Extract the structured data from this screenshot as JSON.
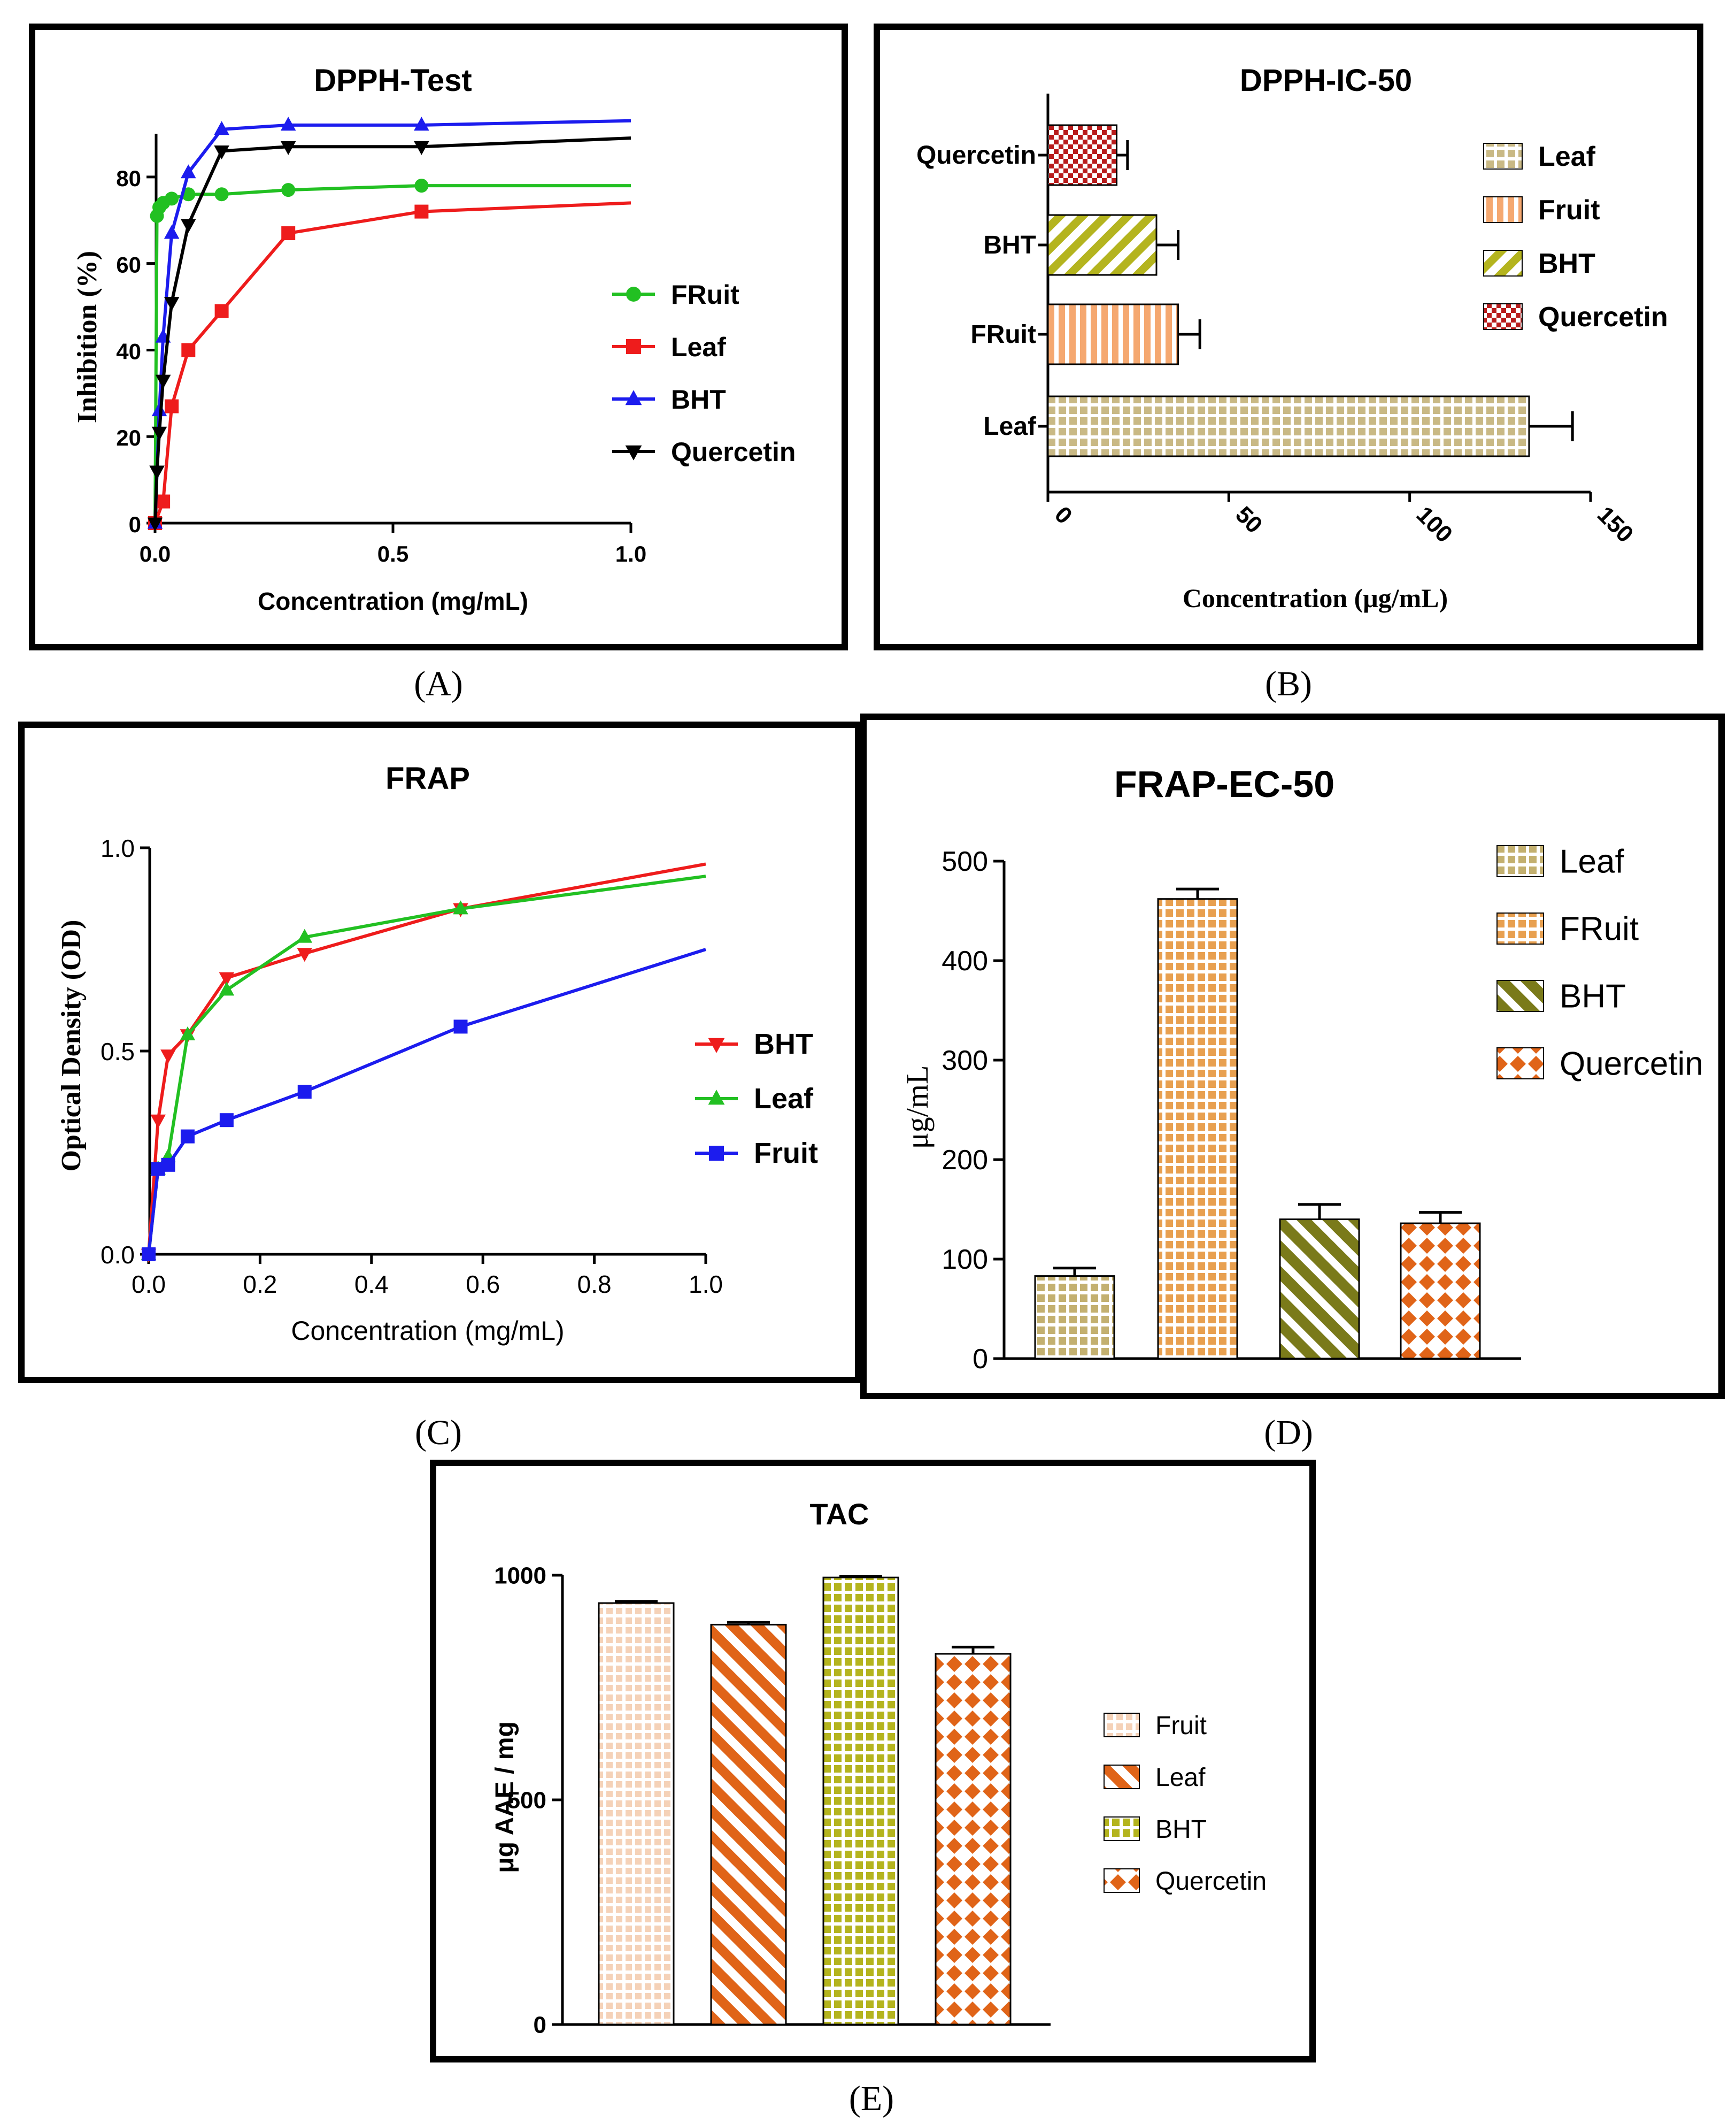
{
  "panels": {
    "A": "(A)",
    "B": "(B)",
    "C": "(C)",
    "D": "(D)",
    "E": "(E)"
  },
  "colors": {
    "green": "#22c022",
    "red": "#ee1c1c",
    "blue": "#1c1cee",
    "black": "#000000",
    "leaf_tan": "#c9b985",
    "fruit_peach": "#f5a870",
    "bht_olive": "#b4b41e",
    "quercetin_red": "#b81c1c",
    "frap_leaf": "#c3b070",
    "frap_fruit": "#e8a050",
    "frap_bht": "#7a7a1a",
    "frap_quercetin": "#e06418",
    "tac_fruit": "#f5d2b8",
    "tac_leaf": "#e06418",
    "tac_bht": "#b4b41e",
    "tac_quercetin": "#e06418"
  },
  "chart_data": [
    {
      "id": "A",
      "type": "line",
      "title": "DPPH-Test",
      "xlabel": "Concentration (mg/mL)",
      "ylabel": "Inhibition (%)",
      "xlim": [
        0,
        1.0
      ],
      "ylim": [
        0,
        90
      ],
      "xticks": [
        "0.0",
        "0.5",
        "1.0"
      ],
      "yticks": [
        "0",
        "20",
        "40",
        "60",
        "80"
      ],
      "legend": "right",
      "series": [
        {
          "name": "FRuit",
          "marker": "circle",
          "color_key": "green",
          "x": [
            0,
            0.004,
            0.009,
            0.017,
            0.035,
            0.07,
            0.14,
            0.28,
            0.56
          ],
          "y": [
            0,
            71,
            73,
            74,
            75,
            76,
            76,
            77,
            78
          ],
          "fit_x": [
            0,
            0.004,
            0.009,
            0.017,
            0.035,
            0.07,
            0.14,
            0.28,
            0.56,
            1.0
          ],
          "fit_y": [
            0,
            71,
            73,
            74,
            75,
            76,
            76,
            77,
            78,
            78
          ]
        },
        {
          "name": "Leaf",
          "marker": "square",
          "color_key": "red",
          "x": [
            0,
            0.017,
            0.035,
            0.07,
            0.14,
            0.28,
            0.56
          ],
          "y": [
            0,
            5,
            27,
            40,
            49,
            67,
            72
          ],
          "fit_x": [
            0,
            0.017,
            0.035,
            0.07,
            0.14,
            0.28,
            0.56,
            1.0
          ],
          "fit_y": [
            0,
            5,
            27,
            40,
            49,
            67,
            72,
            74
          ]
        },
        {
          "name": "BHT",
          "marker": "triangle-up",
          "color_key": "blue",
          "x": [
            0,
            0.009,
            0.017,
            0.035,
            0.07,
            0.14,
            0.28,
            0.56
          ],
          "y": [
            0,
            26,
            43,
            67,
            81,
            91,
            92,
            92
          ],
          "fit_x": [
            0,
            0.009,
            0.017,
            0.035,
            0.07,
            0.14,
            0.28,
            0.56,
            1.0
          ],
          "fit_y": [
            0,
            26,
            43,
            67,
            81,
            91,
            92,
            92,
            93
          ]
        },
        {
          "name": "Quercetin",
          "marker": "triangle-down",
          "color_key": "black",
          "x": [
            0,
            0.004,
            0.009,
            0.017,
            0.035,
            0.07,
            0.14,
            0.28,
            0.56
          ],
          "y": [
            0,
            12,
            21,
            33,
            51,
            69,
            86,
            87,
            87
          ],
          "fit_x": [
            0,
            0.004,
            0.009,
            0.017,
            0.035,
            0.07,
            0.14,
            0.28,
            0.56,
            1.0
          ],
          "fit_y": [
            0,
            12,
            21,
            33,
            51,
            69,
            86,
            87,
            87,
            89
          ]
        }
      ]
    },
    {
      "id": "B",
      "type": "bar",
      "orientation": "horizontal",
      "title": "DPPH-IC-50",
      "xlabel": "Concentration (μg/mL)",
      "ylabel": "",
      "xlim": [
        0,
        150
      ],
      "xticks": [
        "0",
        "50",
        "100",
        "150"
      ],
      "legend": "top-right",
      "categories": [
        "Quercetin",
        "BHT",
        "FRuit",
        "Leaf"
      ],
      "values": [
        19,
        30,
        36,
        133
      ],
      "errors": [
        3,
        6,
        6,
        12
      ],
      "bar_color_keys": [
        "quercetin_red",
        "bht_olive",
        "fruit_peach",
        "leaf_tan"
      ],
      "patterns": [
        "checker",
        "diag",
        "vlines",
        "grid"
      ],
      "legend_entries": [
        "Leaf",
        "Fruit",
        "BHT",
        "Quercetin"
      ],
      "legend_color_keys": [
        "leaf_tan",
        "fruit_peach",
        "bht_olive",
        "quercetin_red"
      ],
      "legend_patterns": [
        "grid",
        "vlines",
        "diag",
        "checker"
      ]
    },
    {
      "id": "C",
      "type": "line",
      "title": "FRAP",
      "xlabel": "Concentration (mg/mL)",
      "ylabel": "Optical Density (OD)",
      "xlim": [
        0,
        1.0
      ],
      "ylim": [
        0,
        1.0
      ],
      "xticks": [
        "0.0",
        "0.2",
        "0.4",
        "0.6",
        "0.8",
        "1.0"
      ],
      "yticks": [
        "0.0",
        "0.5",
        "1.0"
      ],
      "legend": "right",
      "series": [
        {
          "name": "BHT",
          "marker": "triangle-down",
          "color_key": "red",
          "x": [
            0,
            0.017,
            0.035,
            0.07,
            0.14,
            0.28,
            0.56
          ],
          "y": [
            0,
            0.33,
            0.49,
            0.54,
            0.68,
            0.74,
            0.85
          ],
          "fit_x": [
            0,
            0.017,
            0.035,
            0.07,
            0.14,
            0.28,
            0.56,
            1.0
          ],
          "fit_y": [
            0,
            0.33,
            0.49,
            0.54,
            0.68,
            0.74,
            0.85,
            0.96
          ]
        },
        {
          "name": "Leaf",
          "marker": "triangle-up",
          "color_key": "green",
          "x": [
            0,
            0.017,
            0.035,
            0.07,
            0.14,
            0.28,
            0.56
          ],
          "y": [
            0,
            0.21,
            0.24,
            0.54,
            0.65,
            0.78,
            0.85
          ],
          "fit_x": [
            0,
            0.017,
            0.035,
            0.07,
            0.14,
            0.28,
            0.56,
            1.0
          ],
          "fit_y": [
            0,
            0.21,
            0.24,
            0.54,
            0.65,
            0.78,
            0.85,
            0.93
          ]
        },
        {
          "name": "Fruit",
          "marker": "square",
          "color_key": "blue",
          "x": [
            0,
            0.017,
            0.035,
            0.07,
            0.14,
            0.28,
            0.56
          ],
          "y": [
            0,
            0.21,
            0.22,
            0.29,
            0.33,
            0.4,
            0.56
          ],
          "fit_x": [
            0,
            0.017,
            0.035,
            0.07,
            0.14,
            0.28,
            0.56,
            1.0
          ],
          "fit_y": [
            0,
            0.21,
            0.22,
            0.29,
            0.33,
            0.4,
            0.56,
            0.75
          ]
        }
      ]
    },
    {
      "id": "D",
      "type": "bar",
      "orientation": "vertical",
      "title": "FRAP-EC-50",
      "xlabel": "",
      "ylabel": "μg/mL",
      "ylim": [
        0,
        500
      ],
      "yticks": [
        "0",
        "100",
        "200",
        "300",
        "400",
        "500"
      ],
      "legend": "top-right",
      "categories": [
        "Leaf",
        "FRuit",
        "BHT",
        "Quercetin"
      ],
      "values": [
        83,
        462,
        140,
        136
      ],
      "errors": [
        8,
        10,
        15,
        11
      ],
      "bar_color_keys": [
        "frap_leaf",
        "frap_fruit",
        "frap_bht",
        "frap_quercetin"
      ],
      "patterns": [
        "grid",
        "grid",
        "diag",
        "diamond"
      ],
      "legend_entries": [
        "Leaf",
        "FRuit",
        "BHT",
        "Quercetin"
      ],
      "legend_color_keys": [
        "frap_leaf",
        "frap_fruit",
        "frap_bht",
        "frap_quercetin"
      ],
      "legend_patterns": [
        "grid",
        "grid",
        "diag",
        "diamond"
      ]
    },
    {
      "id": "E",
      "type": "bar",
      "orientation": "vertical",
      "title": "TAC",
      "xlabel": "",
      "ylabel": "μg AAE / mg",
      "ylim": [
        0,
        1000
      ],
      "yticks": [
        "0",
        "500",
        "1000"
      ],
      "legend": "right",
      "categories": [
        "Fruit",
        "Leaf",
        "BHT",
        "Quercetin"
      ],
      "values": [
        938,
        890,
        995,
        825
      ],
      "errors": [
        4,
        5,
        2,
        15
      ],
      "bar_color_keys": [
        "tac_fruit",
        "tac_leaf",
        "tac_bht",
        "tac_quercetin"
      ],
      "patterns": [
        "grid",
        "diag",
        "grid",
        "diamond"
      ],
      "legend_entries": [
        "Fruit",
        "Leaf",
        "BHT",
        "Quercetin"
      ],
      "legend_color_keys": [
        "tac_fruit",
        "tac_leaf",
        "tac_bht",
        "tac_quercetin"
      ],
      "legend_patterns": [
        "grid",
        "diag",
        "grid",
        "diamond"
      ]
    }
  ]
}
